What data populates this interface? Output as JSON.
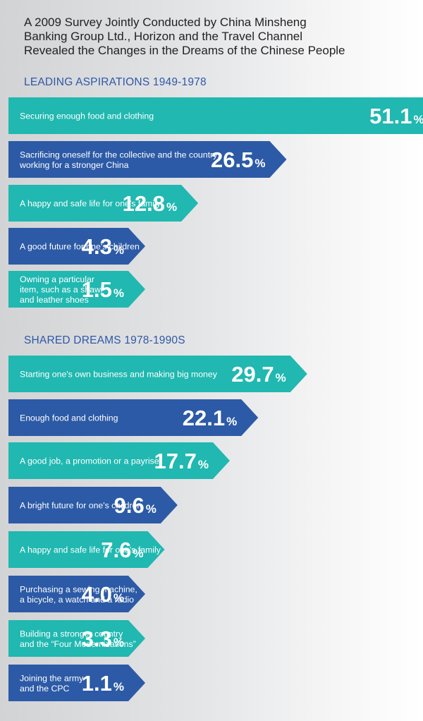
{
  "header": {
    "title_lines": [
      "A 2009 Survey Jointly Conducted by China Minsheng",
      "Banking Group Ltd., Horizon and the Travel Channel",
      "Revealed the Changes in the Dreams of the Chinese People"
    ]
  },
  "colors": {
    "teal": "#20b8b0",
    "blue": "#2c5aa6",
    "heading": "#2f58a6"
  },
  "chart_data": [
    {
      "type": "bar",
      "title": "LEADING ASPIRATIONS 1949-1978",
      "unit": "%",
      "categories": [
        [
          "Securing enough food and clothing"
        ],
        [
          "Sacrificing oneself for the collective and the country;",
          "working for a stronger China"
        ],
        [
          "A happy and safe life for one's family"
        ],
        [
          "A good future for one's children"
        ],
        [
          "Owning a particular",
          "item, such as a shawl",
          "and leather shoes"
        ]
      ],
      "values": [
        51.1,
        26.5,
        12.8,
        4.3,
        1.5
      ]
    },
    {
      "type": "bar",
      "title": "SHARED DREAMS 1978-1990S",
      "unit": "%",
      "categories": [
        [
          "Starting one's own business and making big money"
        ],
        [
          "Enough food and clothing"
        ],
        [
          "A good job, a promotion or a payrise"
        ],
        [
          "A bright future for one's children"
        ],
        [
          "A happy and safe life for one's family"
        ],
        [
          "Purchasing a sewing machine,",
          "a bicycle, a watch and a radio"
        ],
        [
          "Building a stronger country",
          "and the “Four Modernizations”"
        ],
        [
          "Joining the army",
          "and the CPC"
        ]
      ],
      "values": [
        29.7,
        22.1,
        17.7,
        9.6,
        7.6,
        4.0,
        3.3,
        1.1
      ]
    }
  ]
}
